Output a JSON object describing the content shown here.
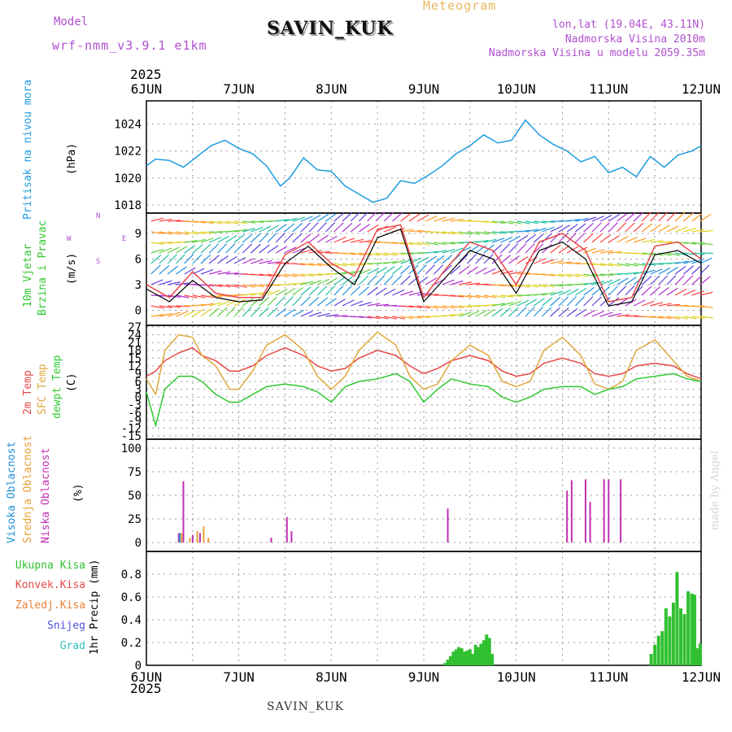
{
  "header": {
    "model_label": "Model",
    "model_name": "wrf-nmm_v3.9.1  e1km",
    "station": "SAVIN_KUK",
    "title": "Meteogram",
    "lonlat": "lon,lat (19.04E, 43.11N)",
    "elevation": "Nadmorska Visina 2010m",
    "model_elevation": "Nadmorska Visina u modelu 2059.35m"
  },
  "footer_station": "SAVIN_KUK",
  "made_by": "made by Angel",
  "year": "2025",
  "colors": {
    "pressure": "#1e9be0",
    "temp2m": "#e84848",
    "sfc_temp": "#e0a840",
    "dewpoint": "#30c830",
    "high_cloud": "#2090d8",
    "mid_cloud": "#e8a030",
    "low_cloud": "#c030b0",
    "precip_total": "#30c030",
    "wind_speed": "#000000",
    "wind_gust": "#e84848"
  },
  "labels": {
    "pressure": [
      "Pritisak na nivou mora",
      "(hPa)"
    ],
    "wind": [
      "10m Vjetar",
      "Brzina i Pravac",
      "(m/s)"
    ],
    "temp": [
      "2m Temp",
      "SFC Temp",
      "dewpt Temp",
      "(C)"
    ],
    "cloud": [
      "Visoka Oblacnost",
      "Srednja Oblacnost",
      "Niska Oblacnost",
      "(%)"
    ],
    "precip_legend": [
      "Ukupna Kisa",
      "Konvek.Kisa",
      "Zaledj.Kisa",
      "Snijeg",
      "Grad"
    ],
    "precip_axis": "1hr Precip (mm)",
    "compass": [
      "N",
      "E",
      "S",
      "W"
    ]
  },
  "chart_data": [
    {
      "type": "line",
      "title": "Pritisak na nivou mora",
      "ylabel": "(hPa)",
      "x_ticks": [
        "6JUN",
        "7JUN",
        "8JUN",
        "9JUN",
        "10JUN",
        "11JUN",
        "12JUN"
      ],
      "ylim": [
        1018,
        1025
      ],
      "y_ticks": [
        1018,
        1020,
        1022,
        1024
      ],
      "grid": true,
      "x": [
        0,
        0.1,
        0.25,
        0.4,
        0.55,
        0.7,
        0.85,
        1.0,
        1.15,
        1.3,
        1.45,
        1.55,
        1.7,
        1.85,
        2.0,
        2.15,
        2.3,
        2.45,
        2.6,
        2.75,
        2.9,
        3.05,
        3.2,
        3.35,
        3.5,
        3.65,
        3.8,
        3.95,
        4.1,
        4.25,
        4.4,
        4.55,
        4.7,
        4.85,
        5.0,
        5.15,
        5.3,
        5.45,
        5.6,
        5.75,
        5.9,
        6.0
      ],
      "series": [
        {
          "values": [
            1020.9,
            1021.4,
            1021.3,
            1020.8,
            1021.6,
            1022.4,
            1022.8,
            1022.2,
            1021.8,
            1020.9,
            1019.4,
            1020.0,
            1021.5,
            1020.6,
            1020.5,
            1019.4,
            1018.8,
            1018.2,
            1018.5,
            1019.8,
            1019.6,
            1020.2,
            1020.9,
            1021.8,
            1022.4,
            1023.2,
            1022.6,
            1022.8,
            1024.3,
            1023.2,
            1022.5,
            1022.0,
            1021.2,
            1021.6,
            1020.4,
            1020.8,
            1020.1,
            1021.6,
            1020.8,
            1021.7,
            1022.0,
            1022.4
          ]
        }
      ]
    },
    {
      "type": "line",
      "title": "10m Vjetar Brzina i Pravac",
      "ylabel": "(m/s)",
      "x_ticks": [
        "6JUN",
        "7JUN",
        "8JUN",
        "9JUN",
        "10JUN",
        "11JUN",
        "12JUN"
      ],
      "ylim": [
        -1,
        11
      ],
      "y_ticks": [
        0,
        3,
        6,
        9
      ],
      "grid": true,
      "x": [
        0,
        0.25,
        0.5,
        0.75,
        1.0,
        1.25,
        1.5,
        1.75,
        2.0,
        2.25,
        2.5,
        2.75,
        3.0,
        3.25,
        3.5,
        3.75,
        4.0,
        4.25,
        4.5,
        4.75,
        5.0,
        5.25,
        5.5,
        5.75,
        6.0
      ],
      "series": [
        {
          "name": "wind_speed",
          "values": [
            2.5,
            1.0,
            3.5,
            1.5,
            1.0,
            1.2,
            5.5,
            7.5,
            5.0,
            3.0,
            8.5,
            9.5,
            1.0,
            4.0,
            7.0,
            6.0,
            2.0,
            7.0,
            8.0,
            6.0,
            0.5,
            1.0,
            6.5,
            7.0,
            5.5
          ]
        },
        {
          "name": "wind_gust",
          "values": [
            3.0,
            1.5,
            4.5,
            2.0,
            1.5,
            1.5,
            6.5,
            8.0,
            5.5,
            4.0,
            9.5,
            10.0,
            1.5,
            5.0,
            8.0,
            7.0,
            3.0,
            8.0,
            9.0,
            7.0,
            1.0,
            1.5,
            7.5,
            8.0,
            6.0
          ]
        }
      ]
    },
    {
      "type": "line",
      "title": "2m Temp / SFC Temp / dewpt Temp",
      "ylabel": "(C)",
      "x_ticks": [
        "6JUN",
        "7JUN",
        "8JUN",
        "9JUN",
        "10JUN",
        "11JUN",
        "12JUN"
      ],
      "ylim": [
        -15,
        27
      ],
      "y_ticks": [
        -15,
        -12,
        -9,
        -6,
        -3,
        0,
        3,
        6,
        9,
        12,
        15,
        18,
        21,
        24,
        27
      ],
      "grid": true,
      "x": [
        0,
        0.1,
        0.2,
        0.35,
        0.5,
        0.6,
        0.75,
        0.9,
        1.0,
        1.15,
        1.3,
        1.5,
        1.7,
        1.85,
        2.0,
        2.15,
        2.3,
        2.5,
        2.7,
        2.85,
        3.0,
        3.15,
        3.3,
        3.5,
        3.7,
        3.85,
        4.0,
        4.15,
        4.3,
        4.5,
        4.7,
        4.85,
        5.0,
        5.15,
        5.3,
        5.5,
        5.7,
        5.85,
        6.0
      ],
      "series": [
        {
          "name": "2m Temp",
          "values": [
            8,
            10,
            14,
            17,
            19,
            16,
            14,
            10,
            10,
            12,
            16,
            19,
            16,
            12,
            10,
            11,
            15,
            18,
            16,
            12,
            9,
            11,
            14,
            16,
            14,
            10,
            8,
            9,
            13,
            15,
            13,
            9,
            8,
            9,
            12,
            13,
            12,
            9,
            7
          ]
        },
        {
          "name": "SFC Temp",
          "values": [
            7,
            1,
            18,
            24,
            23,
            16,
            12,
            3,
            3,
            10,
            20,
            24,
            18,
            8,
            3,
            8,
            18,
            25,
            20,
            8,
            3,
            5,
            14,
            20,
            16,
            6,
            4,
            6,
            18,
            23,
            16,
            5,
            3,
            6,
            18,
            22,
            14,
            8,
            6
          ]
        },
        {
          "name": "dewpt Temp",
          "values": [
            2,
            -11,
            3,
            8,
            8,
            6,
            1,
            -2,
            -2,
            1,
            4,
            5,
            4,
            2,
            -2,
            4,
            6,
            7,
            9,
            6,
            -2,
            3,
            7,
            5,
            4,
            0,
            -2,
            0,
            3,
            4,
            4,
            1,
            3,
            4,
            7,
            8,
            9,
            7,
            6
          ]
        }
      ]
    },
    {
      "type": "bar",
      "title": "Oblacnost",
      "ylabel": "(%)",
      "x_ticks": [
        "6JUN",
        "7JUN",
        "8JUN",
        "9JUN",
        "10JUN",
        "11JUN",
        "12JUN"
      ],
      "ylim": [
        0,
        100
      ],
      "y_ticks": [
        0,
        25,
        50,
        75,
        100
      ],
      "grid": true,
      "series": [
        {
          "name": "Niska Oblacnost",
          "points": [
            [
              0.35,
              10
            ],
            [
              0.4,
              65
            ],
            [
              0.5,
              8
            ],
            [
              0.58,
              10
            ],
            [
              1.35,
              5
            ],
            [
              1.52,
              27
            ],
            [
              1.57,
              12
            ],
            [
              3.26,
              36
            ],
            [
              4.55,
              55
            ],
            [
              4.6,
              66
            ],
            [
              4.75,
              67
            ],
            [
              4.8,
              43
            ],
            [
              4.95,
              67
            ],
            [
              5.0,
              67
            ],
            [
              5.13,
              67
            ],
            [
              6.6,
              5
            ],
            [
              7.8,
              12
            ],
            [
              7.85,
              22
            ],
            [
              7.95,
              28
            ],
            [
              8.0,
              80
            ],
            [
              8.1,
              68
            ],
            [
              8.4,
              80
            ],
            [
              8.45,
              86
            ]
          ]
        },
        {
          "name": "Srednja Oblacnost",
          "points": [
            [
              0.38,
              10
            ],
            [
              0.47,
              5
            ],
            [
              0.55,
              12
            ],
            [
              0.62,
              17
            ],
            [
              0.67,
              5
            ]
          ]
        },
        {
          "name": "Visoka Oblacnost",
          "points": [
            [
              0.36,
              10
            ],
            [
              8.15,
              18
            ],
            [
              8.18,
              99
            ]
          ]
        }
      ]
    },
    {
      "type": "bar",
      "title": "1hr Precip (mm)",
      "ylabel": "1hr Precip (mm)",
      "x_ticks": [
        "6JUN",
        "7JUN",
        "8JUN",
        "9JUN",
        "10JUN",
        "11JUN",
        "12JUN"
      ],
      "ylim": [
        0,
        0.9
      ],
      "y_ticks": [
        0,
        0.2,
        0.4,
        0.6,
        0.8
      ],
      "grid": true,
      "categories": [
        "9JUN",
        "9JUN",
        "9JUN",
        "9JUN",
        "9JUN",
        "9JUN",
        "9JUN",
        "9JUN",
        "9JUN",
        "9JUN",
        "9JUN",
        "9JUN",
        "9JUN",
        "9JUN",
        "9JUN",
        "9JUN",
        "9JUN",
        "9JUN",
        "11JUN",
        "11JUN",
        "11JUN",
        "11JUN",
        "11JUN",
        "11JUN",
        "11JUN",
        "11JUN",
        "11JUN",
        "11JUN",
        "11JUN",
        "11JUN",
        "11JUN",
        "11JUN",
        "11JUN"
      ],
      "x": [
        3.23,
        3.26,
        3.29,
        3.32,
        3.35,
        3.38,
        3.41,
        3.44,
        3.47,
        3.5,
        3.53,
        3.56,
        3.59,
        3.62,
        3.65,
        3.68,
        3.71,
        3.74,
        5.46,
        5.5,
        5.54,
        5.58,
        5.62,
        5.66,
        5.7,
        5.74,
        5.78,
        5.82,
        5.86,
        5.9,
        5.93,
        5.96,
        5.99
      ],
      "series": [
        {
          "name": "Ukupna Kisa",
          "values": [
            0.02,
            0.05,
            0.08,
            0.12,
            0.14,
            0.16,
            0.15,
            0.12,
            0.13,
            0.14,
            0.1,
            0.18,
            0.16,
            0.19,
            0.22,
            0.27,
            0.24,
            0.1,
            0.1,
            0.18,
            0.26,
            0.3,
            0.5,
            0.43,
            0.55,
            0.82,
            0.5,
            0.45,
            0.65,
            0.63,
            0.62,
            0.15,
            0.19
          ]
        }
      ]
    }
  ]
}
